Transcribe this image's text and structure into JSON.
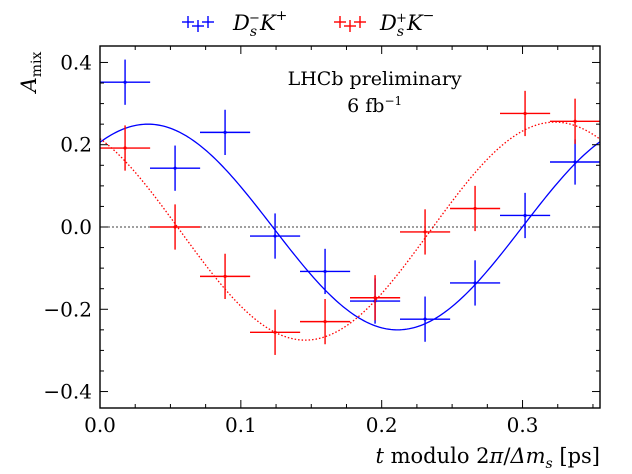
{
  "chart_data": {
    "type": "scatter",
    "title": "",
    "xlabel": "t modulo 2π/Δm_s [ps]",
    "ylabel": "A_mix",
    "xlim": [
      0.0,
      0.355
    ],
    "ylim": [
      -0.44,
      0.44
    ],
    "x_ticks": [
      0.0,
      0.1,
      0.2,
      0.3
    ],
    "x_tick_labels": [
      "0.0",
      "0.1",
      "0.2",
      "0.3"
    ],
    "y_ticks": [
      -0.4,
      -0.2,
      0.0,
      0.2,
      0.4
    ],
    "y_tick_labels": [
      "−0.4",
      "−0.2",
      "0.0",
      "0.2",
      "0.4"
    ],
    "annotations": [
      {
        "text": "LHCb preliminary",
        "x": 0.195,
        "y": 0.345
      },
      {
        "text": "6 fb⁻¹",
        "x": 0.195,
        "y": 0.28
      }
    ],
    "reference_line": {
      "y": 0.0,
      "style": "dotted"
    },
    "series": [
      {
        "name": "D_s⁻K⁺",
        "color": "#0000ff",
        "points": [
          {
            "x": 0.0178,
            "y": 0.352,
            "xerr": 0.0178,
            "yerr": 0.055
          },
          {
            "x": 0.0533,
            "y": 0.143,
            "xerr": 0.0178,
            "yerr": 0.055
          },
          {
            "x": 0.0888,
            "y": 0.23,
            "xerr": 0.0178,
            "yerr": 0.055
          },
          {
            "x": 0.1243,
            "y": -0.022,
            "xerr": 0.0178,
            "yerr": 0.055
          },
          {
            "x": 0.1598,
            "y": -0.108,
            "xerr": 0.0178,
            "yerr": 0.055
          },
          {
            "x": 0.1953,
            "y": -0.18,
            "xerr": 0.0178,
            "yerr": 0.055
          },
          {
            "x": 0.2308,
            "y": -0.224,
            "xerr": 0.0178,
            "yerr": 0.055
          },
          {
            "x": 0.2663,
            "y": -0.136,
            "xerr": 0.0178,
            "yerr": 0.055
          },
          {
            "x": 0.3018,
            "y": 0.028,
            "xerr": 0.0178,
            "yerr": 0.055
          },
          {
            "x": 0.3373,
            "y": 0.158,
            "xerr": 0.0178,
            "yerr": 0.055
          }
        ],
        "fit": {
          "style": "solid",
          "amplitude": 0.25,
          "period": 0.3545,
          "offset": 0.0,
          "phase_peak_x": 0.034
        }
      },
      {
        "name": "D_s⁺K⁻",
        "color": "#ff0000",
        "points": [
          {
            "x": 0.0178,
            "y": 0.192,
            "xerr": 0.0178,
            "yerr": 0.055
          },
          {
            "x": 0.0533,
            "y": 0.0,
            "xerr": 0.0178,
            "yerr": 0.055
          },
          {
            "x": 0.0888,
            "y": -0.12,
            "xerr": 0.0178,
            "yerr": 0.055
          },
          {
            "x": 0.1243,
            "y": -0.256,
            "xerr": 0.0178,
            "yerr": 0.055
          },
          {
            "x": 0.1598,
            "y": -0.23,
            "xerr": 0.0178,
            "yerr": 0.055
          },
          {
            "x": 0.1953,
            "y": -0.172,
            "xerr": 0.0178,
            "yerr": 0.055
          },
          {
            "x": 0.2308,
            "y": -0.012,
            "xerr": 0.0178,
            "yerr": 0.055
          },
          {
            "x": 0.2663,
            "y": 0.045,
            "xerr": 0.0178,
            "yerr": 0.055
          },
          {
            "x": 0.3018,
            "y": 0.276,
            "xerr": 0.0178,
            "yerr": 0.055
          },
          {
            "x": 0.3373,
            "y": 0.257,
            "xerr": 0.0178,
            "yerr": 0.055
          }
        ],
        "fit": {
          "style": "dotted",
          "amplitude": 0.265,
          "period": 0.3545,
          "offset": -0.01,
          "phase_peak_x": 0.323
        }
      }
    ]
  }
}
